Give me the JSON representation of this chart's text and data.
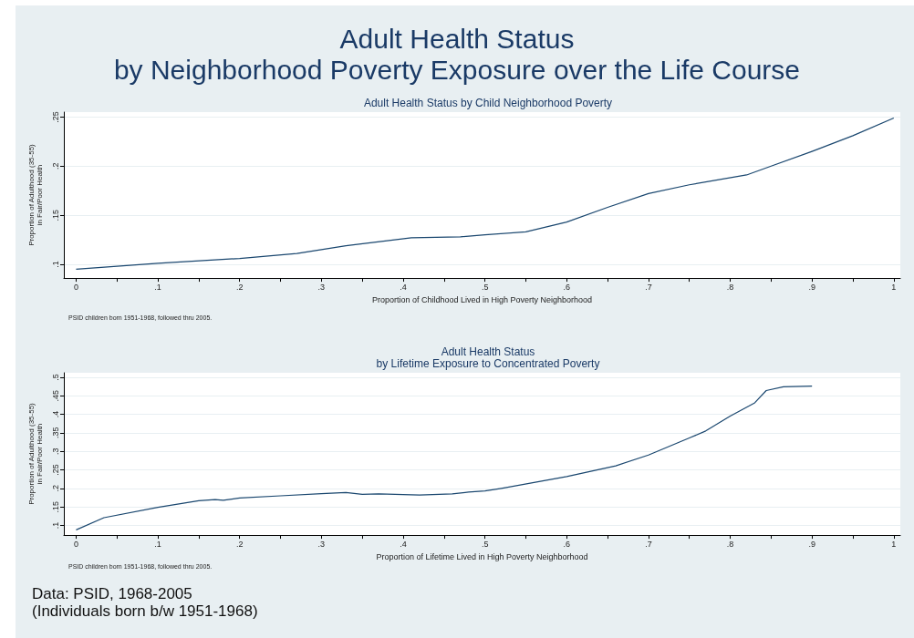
{
  "chart_data": [
    {
      "type": "line",
      "title": "Adult Health Status\nby Neighborhood Poverty Exposure over the Life Course",
      "subtitle": "Adult Health Status by Child Neighborhood Poverty",
      "xlabel": "Proportion of Childhood Lived in High Poverty Neighborhood",
      "ylabel": "Proportion of Adulthood (35-55)\nin Fair/Poor Health",
      "annotations": [
        "PSID children born 1951-1968, followed thru 2005."
      ],
      "x": [
        0,
        0.1,
        0.2,
        0.27,
        0.33,
        0.41,
        0.47,
        0.5,
        0.55,
        0.6,
        0.65,
        0.7,
        0.75,
        0.82,
        0.85,
        0.9,
        0.95,
        1
      ],
      "series": [
        {
          "color": "#1a476f",
          "values": [
            0.095,
            0.101,
            0.106,
            0.111,
            0.119,
            0.127,
            0.128,
            0.13,
            0.133,
            0.143,
            0.158,
            0.172,
            0.181,
            0.191,
            0.2,
            0.215,
            0.231,
            0.249
          ]
        }
      ],
      "xlim": [
        -0.015,
        1.008
      ],
      "ylim": [
        0.086,
        0.255
      ],
      "xticks": [
        {
          "value": 0,
          "label": "0"
        },
        {
          "value": 0.05,
          "label": null
        },
        {
          "value": 0.1,
          "label": ".1"
        },
        {
          "value": 0.15,
          "label": null
        },
        {
          "value": 0.2,
          "label": ".2"
        },
        {
          "value": 0.25,
          "label": null
        },
        {
          "value": 0.3,
          "label": ".3"
        },
        {
          "value": 0.35,
          "label": null
        },
        {
          "value": 0.4,
          "label": ".4"
        },
        {
          "value": 0.45,
          "label": null
        },
        {
          "value": 0.5,
          "label": ".5"
        },
        {
          "value": 0.55,
          "label": null
        },
        {
          "value": 0.6,
          "label": ".6"
        },
        {
          "value": 0.65,
          "label": null
        },
        {
          "value": 0.7,
          "label": ".7"
        },
        {
          "value": 0.75,
          "label": null
        },
        {
          "value": 0.8,
          "label": ".8"
        },
        {
          "value": 0.85,
          "label": null
        },
        {
          "value": 0.9,
          "label": ".9"
        },
        {
          "value": 0.95,
          "label": null
        },
        {
          "value": 1,
          "label": "1"
        }
      ],
      "yticks": [
        {
          "value": 0.1,
          "label": ".1"
        },
        {
          "value": 0.15,
          "label": ".15"
        },
        {
          "value": 0.2,
          "label": ".2"
        },
        {
          "value": 0.25,
          "label": ".25"
        }
      ],
      "grid": "y",
      "marker": "none",
      "line_style": "solid"
    },
    {
      "type": "line",
      "title": "Adult Health Status\nby Lifetime Exposure to Concentrated Poverty",
      "xlabel": "Proportion of Lifetime Lived in High Poverty Neighborhood",
      "ylabel": "Proportion of Adulthood (35-55)\nin Fair/Poor Health",
      "annotations": [
        "PSID children born 1951-1968, followed thru 2005.",
        "Data: PSID, 1968-2005\n(Individuals born b/w 1951-1968)"
      ],
      "x": [
        0,
        0.034,
        0.1,
        0.15,
        0.17,
        0.18,
        0.2,
        0.25,
        0.3,
        0.33,
        0.35,
        0.37,
        0.42,
        0.46,
        0.48,
        0.5,
        0.52,
        0.6,
        0.66,
        0.7,
        0.75,
        0.77,
        0.8,
        0.83,
        0.844,
        0.865,
        0.9
      ],
      "series": [
        {
          "color": "#1a476f",
          "values": [
            0.088,
            0.121,
            0.149,
            0.167,
            0.17,
            0.168,
            0.174,
            0.18,
            0.186,
            0.189,
            0.184,
            0.185,
            0.182,
            0.185,
            0.19,
            0.193,
            0.2,
            0.232,
            0.261,
            0.29,
            0.336,
            0.355,
            0.395,
            0.431,
            0.464,
            0.474,
            0.476
          ]
        }
      ],
      "xlim": [
        -0.015,
        1.008
      ],
      "ylim": [
        0.074,
        0.512
      ],
      "xticks": [
        {
          "value": 0,
          "label": "0"
        },
        {
          "value": 0.05,
          "label": null
        },
        {
          "value": 0.1,
          "label": ".1"
        },
        {
          "value": 0.15,
          "label": null
        },
        {
          "value": 0.2,
          "label": ".2"
        },
        {
          "value": 0.25,
          "label": null
        },
        {
          "value": 0.3,
          "label": ".3"
        },
        {
          "value": 0.35,
          "label": null
        },
        {
          "value": 0.4,
          "label": ".4"
        },
        {
          "value": 0.45,
          "label": null
        },
        {
          "value": 0.5,
          "label": ".5"
        },
        {
          "value": 0.55,
          "label": null
        },
        {
          "value": 0.6,
          "label": ".6"
        },
        {
          "value": 0.65,
          "label": null
        },
        {
          "value": 0.7,
          "label": ".7"
        },
        {
          "value": 0.75,
          "label": null
        },
        {
          "value": 0.8,
          "label": ".8"
        },
        {
          "value": 0.85,
          "label": null
        },
        {
          "value": 0.9,
          "label": ".9"
        },
        {
          "value": 0.95,
          "label": null
        },
        {
          "value": 1,
          "label": "1"
        }
      ],
      "yticks": [
        {
          "value": 0.1,
          "label": ".1"
        },
        {
          "value": 0.15,
          "label": ".15"
        },
        {
          "value": 0.2,
          "label": ".2"
        },
        {
          "value": 0.25,
          "label": ".25"
        },
        {
          "value": 0.3,
          "label": ".3"
        },
        {
          "value": 0.35,
          "label": ".35"
        },
        {
          "value": 0.4,
          "label": ".4"
        },
        {
          "value": 0.45,
          "label": ".45"
        },
        {
          "value": 0.5,
          "label": ".5"
        }
      ],
      "grid": "y",
      "marker": "none",
      "line_style": "solid"
    }
  ]
}
